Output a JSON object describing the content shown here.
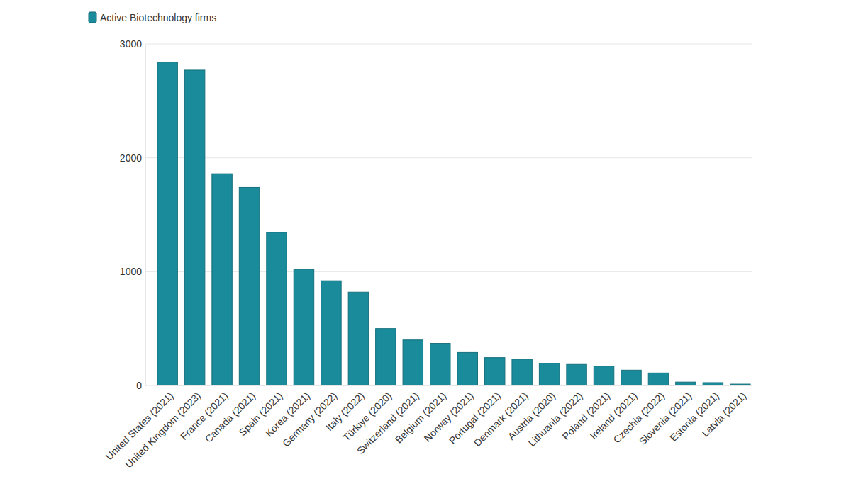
{
  "chart_data": {
    "type": "bar",
    "categories": [
      "United States (2021)",
      "United Kingdom (2023)",
      "France (2021)",
      "Canada (2021)",
      "Spain (2021)",
      "Korea (2021)",
      "Germany (2022)",
      "Italy (2022)",
      "Türkiye (2020)",
      "Switzerland (2021)",
      "Belgium (2021)",
      "Norway (2021)",
      "Portugal (2021)",
      "Denmark (2021)",
      "Austria (2020)",
      "Lithuania (2022)",
      "Poland (2021)",
      "Ireland (2021)",
      "Czechia (2022)",
      "Slovenia (2021)",
      "Estonia (2021)",
      "Latvia (2021)"
    ],
    "series": [
      {
        "name": "Active Biotechnology firms",
        "color": "#1a8b9a",
        "values": [
          2840,
          2770,
          1860,
          1740,
          1345,
          1020,
          920,
          820,
          500,
          400,
          370,
          290,
          245,
          230,
          195,
          185,
          170,
          135,
          110,
          30,
          25,
          12
        ]
      }
    ],
    "ylim": [
      0,
      3000
    ],
    "yticks": [
      0,
      1000,
      2000,
      3000
    ],
    "grid": true,
    "legend": "top-left"
  }
}
